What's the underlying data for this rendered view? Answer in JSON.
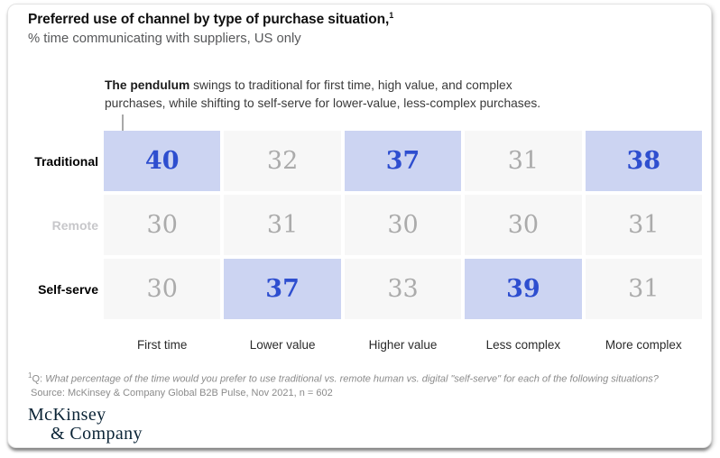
{
  "header": {
    "title": "Preferred use of channel by type of purchase situation,",
    "title_superscript": "1",
    "subtitle": "% time communicating with suppliers, US only"
  },
  "annotation": {
    "lead": "The pendulum",
    "body": " swings to traditional for first time, high value, and complex purchases, while shifting to self-serve for lower-value, less-complex purchases."
  },
  "chart_data": {
    "type": "heatmap",
    "title": "Preferred use of channel by type of purchase situation",
    "subtitle": "% time communicating with suppliers, US only",
    "categories": [
      "First time",
      "Lower value",
      "Higher value",
      "Less complex",
      "More complex"
    ],
    "rows": [
      {
        "label": "Traditional",
        "label_muted": false,
        "values": [
          40,
          32,
          37,
          31,
          38
        ],
        "highlighted": [
          true,
          false,
          true,
          false,
          true
        ]
      },
      {
        "label": "Remote",
        "label_muted": true,
        "values": [
          30,
          31,
          30,
          30,
          31
        ],
        "highlighted": [
          false,
          false,
          false,
          false,
          false
        ]
      },
      {
        "label": "Self-serve",
        "label_muted": false,
        "values": [
          30,
          37,
          33,
          39,
          31
        ],
        "highlighted": [
          false,
          true,
          false,
          true,
          false
        ]
      }
    ],
    "colors": {
      "highlight_bg": "#ccd4f2",
      "highlight_text": "#2e4ecf",
      "cell_bg": "#f7f7f7",
      "cell_text": "#ababab",
      "muted_row_label": "#c7c7ca"
    },
    "legend": "none",
    "grid": false
  },
  "footnote": {
    "marker": "1",
    "prefix": "Q: ",
    "question": "What percentage of the time would you prefer to use traditional vs. remote human vs. digital \"self-serve\" for each of the following situations?",
    "source": "Source: McKinsey & Company Global B2B Pulse, Nov 2021, n = 602"
  },
  "logo": {
    "line1": "McKinsey",
    "line2": "& Company"
  }
}
